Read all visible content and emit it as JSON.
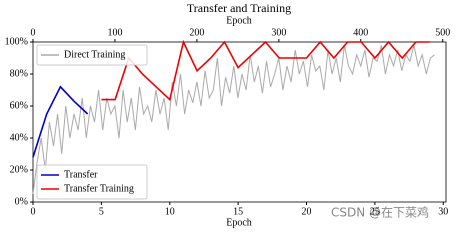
{
  "chart_data": {
    "type": "line",
    "title": "Transfer and Training",
    "xlabel": "Epoch",
    "x2label": "Epoch",
    "xlim": [
      0,
      30.2
    ],
    "xticks": [
      0,
      5,
      10,
      15,
      20,
      25,
      30
    ],
    "x2lim": [
      0,
      504
    ],
    "x2ticks": [
      0,
      100,
      200,
      300,
      400,
      500
    ],
    "ylim": [
      0,
      100
    ],
    "yticks": [
      {
        "value": 0,
        "label": "0%"
      },
      {
        "value": 20,
        "label": "20%"
      },
      {
        "value": 40,
        "label": "40%"
      },
      {
        "value": 60,
        "label": "60%"
      },
      {
        "value": 80,
        "label": "80%"
      },
      {
        "value": 100,
        "label": "100%"
      }
    ],
    "watermark": "CSDN @在下菜鸡",
    "series": [
      {
        "name": "Direct Training",
        "color": "#aaaaaa",
        "axis": "x2",
        "legend": "upper left",
        "x": [
          0,
          5,
          10,
          15,
          20,
          25,
          30,
          35,
          40,
          45,
          50,
          55,
          60,
          65,
          70,
          75,
          80,
          85,
          90,
          95,
          100,
          105,
          110,
          115,
          120,
          125,
          130,
          135,
          140,
          145,
          150,
          155,
          160,
          165,
          170,
          175,
          180,
          185,
          190,
          195,
          200,
          205,
          210,
          215,
          220,
          225,
          230,
          235,
          240,
          245,
          250,
          255,
          260,
          265,
          270,
          275,
          280,
          285,
          290,
          295,
          300,
          305,
          310,
          315,
          320,
          325,
          330,
          335,
          340,
          345,
          350,
          355,
          360,
          365,
          370,
          375,
          380,
          385,
          390,
          395,
          400,
          405,
          410,
          415,
          420,
          425,
          430,
          435,
          440,
          445,
          450,
          455,
          460,
          465,
          470,
          475,
          480,
          485,
          490
        ],
        "values": [
          5,
          25,
          40,
          20,
          50,
          35,
          55,
          30,
          60,
          40,
          55,
          45,
          65,
          40,
          60,
          50,
          70,
          45,
          65,
          55,
          60,
          40,
          70,
          50,
          65,
          45,
          72,
          55,
          60,
          50,
          70,
          55,
          65,
          45,
          75,
          60,
          80,
          55,
          70,
          62,
          75,
          60,
          82,
          65,
          70,
          90,
          60,
          78,
          68,
          85,
          65,
          80,
          70,
          92,
          75,
          85,
          68,
          88,
          72,
          80,
          90,
          70,
          85,
          75,
          95,
          80,
          88,
          72,
          92,
          82,
          85,
          70,
          95,
          80,
          90,
          75,
          98,
          85,
          80,
          92,
          85,
          95,
          78,
          90,
          88,
          98,
          80,
          92,
          85,
          95,
          82,
          92,
          88,
          98,
          85,
          92,
          80,
          90,
          92
        ]
      },
      {
        "name": "Transfer",
        "color": "#0000cc",
        "legend": "lower left",
        "x": [
          0,
          1,
          2,
          3,
          4
        ],
        "values": [
          28,
          55,
          72,
          63,
          55
        ]
      },
      {
        "name": "Transfer Training",
        "color": "#ee0000",
        "legend": "lower left",
        "x": [
          5,
          6,
          7,
          8,
          9,
          10,
          11,
          12,
          13,
          14,
          15,
          16,
          17,
          18,
          19,
          20,
          21,
          22,
          23,
          24,
          25,
          26,
          27,
          28,
          29
        ],
        "values": [
          64,
          64,
          90,
          80,
          72,
          64,
          100,
          82,
          90,
          100,
          84,
          92,
          100,
          90,
          90,
          90,
          100,
          90,
          100,
          100,
          90,
          100,
          90,
          100,
          100
        ]
      }
    ]
  }
}
